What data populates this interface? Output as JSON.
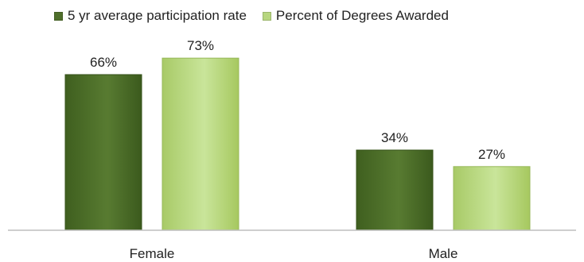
{
  "chart_data": {
    "type": "bar",
    "categories": [
      "Female",
      "Male"
    ],
    "series": [
      {
        "name": "5 yr average participation rate",
        "values": [
          66,
          34
        ],
        "labels": [
          "66%",
          "34%"
        ],
        "color": "#4f6f2b"
      },
      {
        "name": "Percent of Degrees Awarded",
        "values": [
          73,
          27
        ],
        "labels": [
          "73%",
          "27%"
        ],
        "color": "#b7d67f"
      }
    ],
    "ylim": [
      0,
      100
    ],
    "grid": false,
    "legend_position": "top"
  }
}
